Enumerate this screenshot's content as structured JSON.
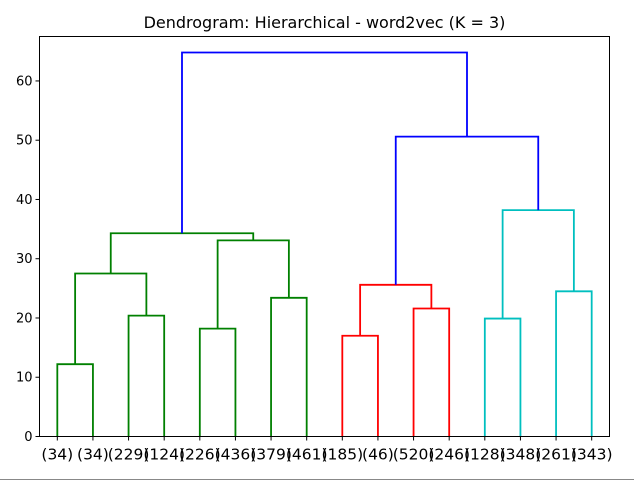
{
  "chart_data": {
    "type": "dendrogram",
    "title": "Dendrogram: Hierarchical - word2vec (K = 3)",
    "xlabel": "",
    "ylabel": "",
    "ylim": [
      0,
      67.5
    ],
    "yticks": [
      0,
      10,
      20,
      30,
      40,
      50,
      60
    ],
    "grid": false,
    "leaves": [
      "(34)",
      "(34)",
      "(229)",
      "(124)",
      "(226)",
      "(436)",
      "(379)",
      "(461)",
      "(185)",
      "(46)",
      "(520)",
      "(246)",
      "(128)",
      "(348)",
      "(261)",
      "(343)"
    ],
    "cluster_colors": {
      "green": "#008000",
      "red": "#ff0000",
      "cyan": "#00bfbf",
      "link": "#0000ff"
    },
    "merges": [
      {
        "left": 0,
        "right": 1,
        "height": 12.2,
        "color": "green"
      },
      {
        "left": 2,
        "right": 3,
        "height": 20.4,
        "color": "green"
      },
      {
        "left": 4,
        "right": 5,
        "height": 18.2,
        "color": "green"
      },
      {
        "left": 6,
        "right": 7,
        "height": 23.4,
        "color": "green"
      },
      {
        "left": 8,
        "right": 9,
        "height": 17.0,
        "color": "red"
      },
      {
        "left": 10,
        "right": 11,
        "height": 21.6,
        "color": "red"
      },
      {
        "left": 12,
        "right": 13,
        "height": 19.9,
        "color": "cyan"
      },
      {
        "left": 14,
        "right": 15,
        "height": 24.5,
        "color": "cyan"
      },
      {
        "left": 16,
        "right": 17,
        "height": 27.5,
        "color": "green"
      },
      {
        "left": 18,
        "right": 19,
        "height": 33.1,
        "color": "green"
      },
      {
        "left": 20,
        "right": 21,
        "height": 25.6,
        "color": "red"
      },
      {
        "left": 22,
        "right": 23,
        "height": 38.2,
        "color": "cyan"
      },
      {
        "left": 24,
        "right": 25,
        "height": 34.3,
        "color": "green"
      },
      {
        "left": 26,
        "right": 27,
        "height": 50.6,
        "color": "link"
      },
      {
        "left": 28,
        "right": 29,
        "height": 64.8,
        "color": "link"
      }
    ]
  }
}
